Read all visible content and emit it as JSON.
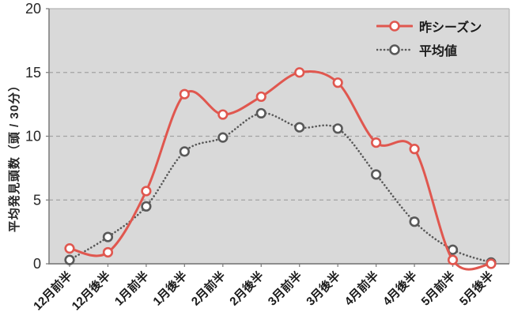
{
  "chart_data": {
    "type": "line",
    "title": "",
    "categories": [
      "12月前半",
      "12月後半",
      "1月前半",
      "1月後半",
      "2月前半",
      "2月後半",
      "3月前半",
      "3月後半",
      "4月前半",
      "4月後半",
      "5月前半",
      "5月後半"
    ],
    "series": [
      {
        "name": "昨シーズン",
        "color": "#e0574f",
        "line_style": "solid",
        "marker": "open-circle",
        "values": [
          1.2,
          0.9,
          5.7,
          13.3,
          11.7,
          13.1,
          15,
          14.2,
          9.5,
          9,
          0.3,
          0
        ]
      },
      {
        "name": "平均値",
        "color": "#595959",
        "line_style": "dotted",
        "marker": "open-circle",
        "values": [
          0.3,
          2.1,
          4.5,
          8.8,
          9.9,
          11.8,
          10.7,
          10.6,
          7,
          3.3,
          1.1,
          0.1
        ]
      }
    ],
    "xlabel": "",
    "ylabel": "平均発見頭数（頭 / 30分）",
    "ylim": [
      0,
      20
    ],
    "y_ticks": [
      0,
      5,
      10,
      15,
      20
    ],
    "x_tick_rotation": 45,
    "grid": "horizontal-dashed",
    "legend_position": "top-right-inside",
    "colors": {
      "plot_background": "#d9d9d9",
      "grid_line": "#a3a3a3",
      "axis_line": "#808080",
      "plot_border": "#b3b3b3",
      "tick_text": "#262626",
      "label_text": "#1a1a1a",
      "marker_fill": "#ffffff"
    }
  }
}
